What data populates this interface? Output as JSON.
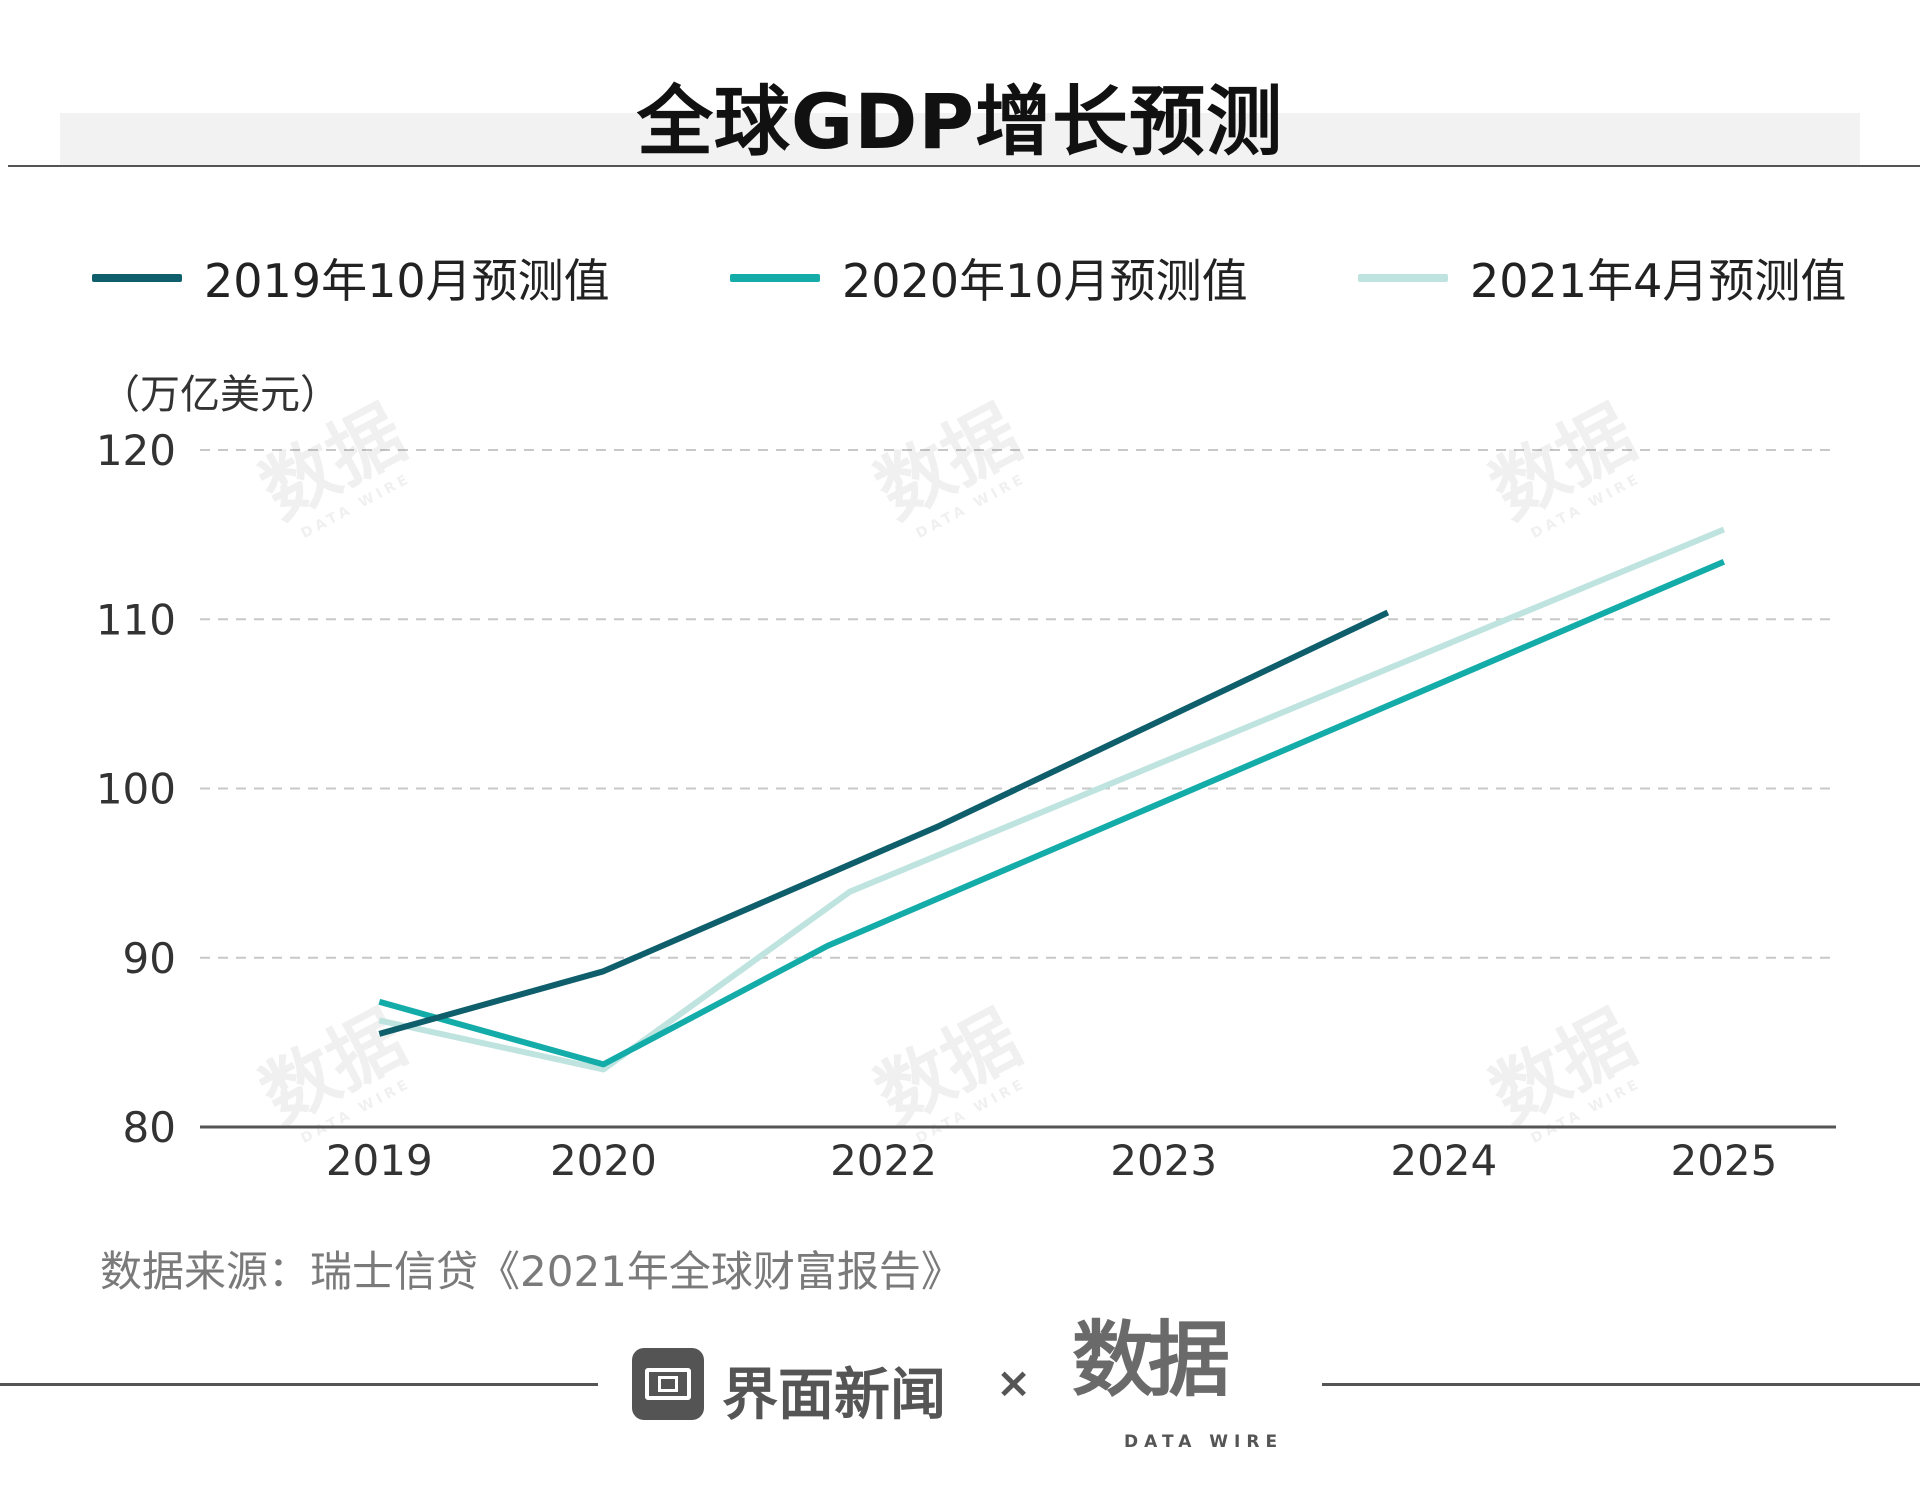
{
  "title": "全球GDP增长预测",
  "legend": [
    {
      "label": "2019年10月预测值",
      "color": "#0e5f6b"
    },
    {
      "label": "2020年10月预测值",
      "color": "#14aca8"
    },
    {
      "label": "2021年4月预测值",
      "color": "#bfe4e0"
    }
  ],
  "source": "数据来源：瑞士信贷《2021年全球财富报告》",
  "footer": {
    "brand": "界面新闻",
    "times": "×",
    "partner": "数据",
    "partner_sub": "DATA WIRE"
  },
  "watermark": {
    "text": "数据",
    "sub": "DATA WIRE"
  },
  "chart_data": {
    "type": "line",
    "title": "全球GDP增长预测",
    "ylabel": "（万亿美元）",
    "xlabel": "",
    "ylim": [
      80,
      120
    ],
    "yticks": [
      "80",
      "90",
      "100",
      "110",
      "120"
    ],
    "x_tick_labels": [
      "2019",
      "2020",
      "2022",
      "2023",
      "2024",
      "2025"
    ],
    "x_tick_positions": [
      2019,
      2020,
      2021.25,
      2022.5,
      2023.75,
      2025
    ],
    "xlim": [
      2018.2,
      2025.5
    ],
    "grid": true,
    "legend_position": "top",
    "series": [
      {
        "name": "2019年10月预测值",
        "color": "#0e5f6b",
        "x": [
          2019,
          2020,
          2021.5,
          2023.5
        ],
        "values": [
          85.5,
          89.2,
          97.8,
          110.4
        ]
      },
      {
        "name": "2020年10月预测值",
        "color": "#14aca8",
        "x": [
          2019,
          2020,
          2021,
          2025
        ],
        "values": [
          87.4,
          83.7,
          90.7,
          113.4
        ]
      },
      {
        "name": "2021年4月预测值",
        "color": "#bfe4e0",
        "x": [
          2019,
          2020,
          2021.1,
          2025
        ],
        "values": [
          86.3,
          83.4,
          93.9,
          115.3
        ]
      }
    ]
  }
}
